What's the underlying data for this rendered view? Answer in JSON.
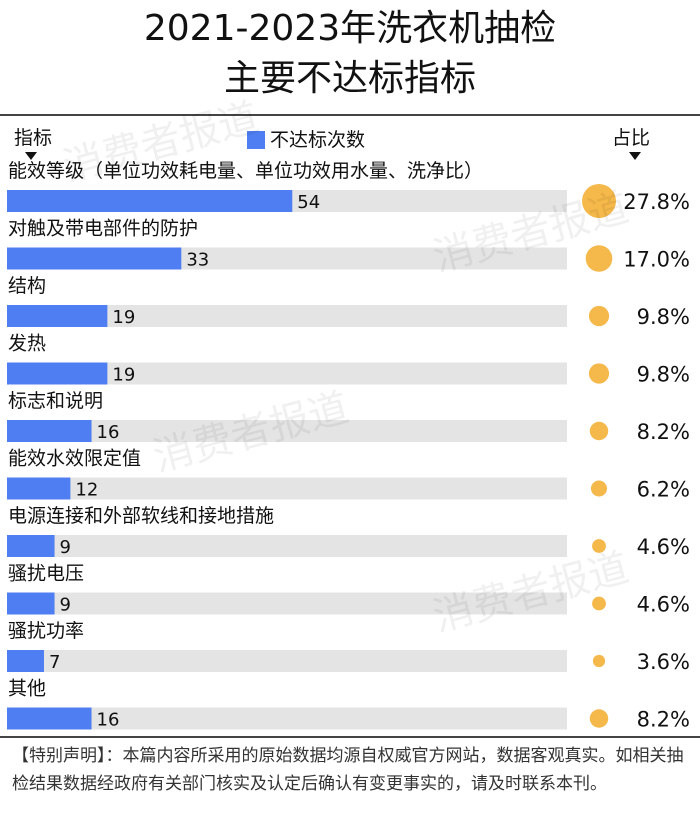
{
  "title_line1": "2021-2023年洗衣机抽检",
  "title_line2": "主要不达标指标",
  "header_indicator": "指标",
  "header_legend": "不达标次数",
  "header_share": "占比",
  "watermark_text": "消费者报道",
  "disclaimer": "【特别声明】：本篇内容所采用的原始数据均源自权威官方网站，数据客观真实。如相关抽检结果数据经政府有关部门核实及认定后确认有变更事实的，请及时联系本刊。",
  "colors": {
    "bar": "#4f7ef2",
    "track": "#e4e4e4",
    "bubble": "#f5b84a"
  },
  "chart_data": {
    "type": "bar",
    "orientation": "horizontal",
    "categories": [
      "能效等级（单位功效耗电量、单位功效用水量、洗净比）",
      "对触及带电部件的防护",
      "结构",
      "发热",
      "标志和说明",
      "能效水效限定值",
      "电源连接和外部软线和接地措施",
      "骚扰电压",
      "骚扰功率",
      "其他"
    ],
    "series": [
      {
        "name": "不达标次数",
        "values": [
          54,
          33,
          19,
          19,
          16,
          12,
          9,
          9,
          7,
          16
        ]
      }
    ],
    "share_labels": [
      "27.8%",
      "17.0%",
      "9.8%",
      "9.8%",
      "8.2%",
      "6.2%",
      "4.6%",
      "4.6%",
      "3.6%",
      "8.2%"
    ],
    "share_values": [
      27.8,
      17.0,
      9.8,
      9.8,
      8.2,
      6.2,
      4.6,
      4.6,
      3.6,
      8.2
    ],
    "xlim": [
      0,
      106
    ],
    "grid": false,
    "legend_position": "top-center"
  }
}
